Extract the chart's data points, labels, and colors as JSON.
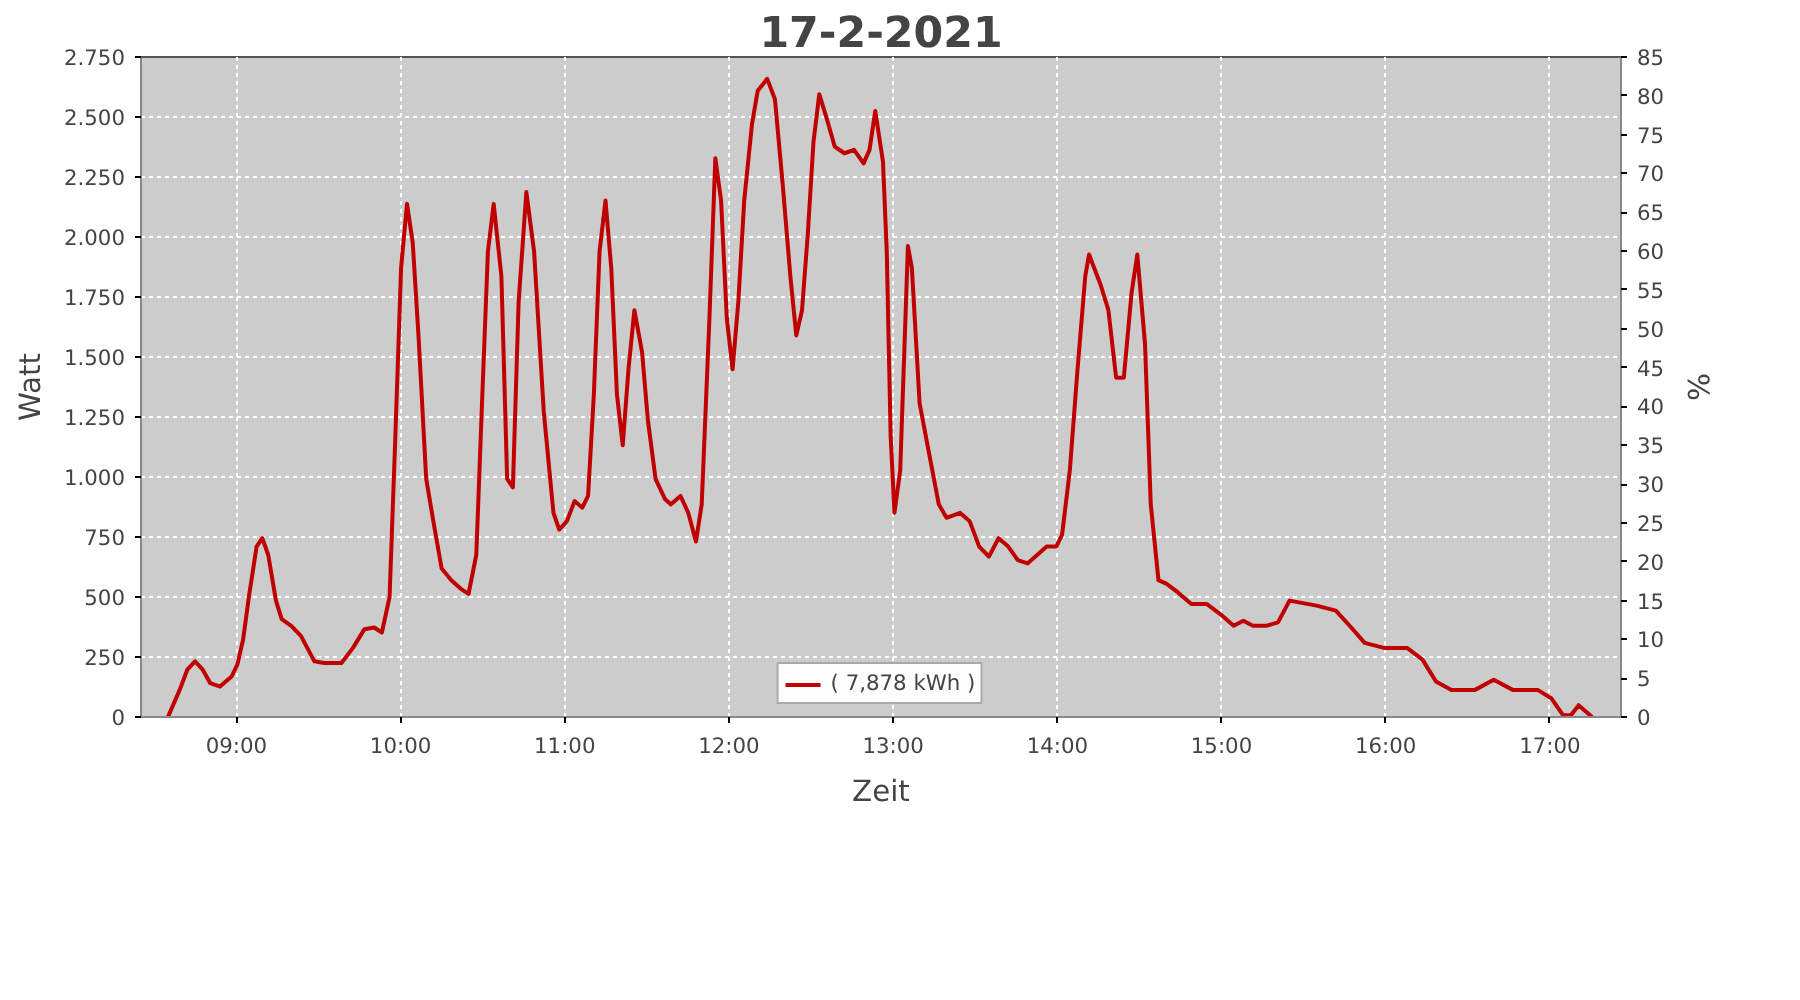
{
  "chart_data": {
    "type": "line",
    "title": "17-2-2021",
    "xlabel": "Zeit",
    "ylabel": "Watt",
    "y2label": "%",
    "xlim": [
      8.419,
      17.433
    ],
    "xticks": [
      {
        "value": 9,
        "label": "09:00"
      },
      {
        "value": 10,
        "label": "10:00"
      },
      {
        "value": 11,
        "label": "11:00"
      },
      {
        "value": 12,
        "label": "12:00"
      },
      {
        "value": 13,
        "label": "13:00"
      },
      {
        "value": 14,
        "label": "14:00"
      },
      {
        "value": 15,
        "label": "15:00"
      },
      {
        "value": 16,
        "label": "16:00"
      },
      {
        "value": 17,
        "label": "17:00"
      }
    ],
    "ylim": [
      0,
      2750
    ],
    "yticks": [
      0,
      250,
      500,
      750,
      {
        "value": 1000,
        "label": "1.000"
      },
      {
        "value": 1250,
        "label": "1.250"
      },
      {
        "value": 1500,
        "label": "1.500"
      },
      {
        "value": 1750,
        "label": "1.750"
      },
      {
        "value": 2000,
        "label": "2.000"
      },
      {
        "value": 2250,
        "label": "2.250"
      },
      {
        "value": 2500,
        "label": "2.500"
      },
      {
        "value": 2750,
        "label": "2.750"
      }
    ],
    "y2lim": [
      0,
      85
    ],
    "y2ticks": [
      0,
      5,
      10,
      15,
      20,
      25,
      30,
      35,
      40,
      45,
      50,
      55,
      60,
      65,
      70,
      75,
      80,
      85
    ],
    "grid": true,
    "legend": "bottom",
    "line_style": "solid",
    "marker": "none",
    "x": [
      8.583,
      8.654,
      8.701,
      8.748,
      8.795,
      8.841,
      8.9,
      8.971,
      9.006,
      9.041,
      9.076,
      9.123,
      9.158,
      9.194,
      9.241,
      9.276,
      9.334,
      9.393,
      9.475,
      9.534,
      9.64,
      9.71,
      9.78,
      9.839,
      9.886,
      9.933,
      9.968,
      10.003,
      10.039,
      10.074,
      10.109,
      10.156,
      10.203,
      10.25,
      10.309,
      10.367,
      10.414,
      10.461,
      10.496,
      10.532,
      10.567,
      10.614,
      10.649,
      10.684,
      10.719,
      10.766,
      10.813,
      10.872,
      10.931,
      10.966,
      11.013,
      11.06,
      11.107,
      11.142,
      11.177,
      11.212,
      11.248,
      11.283,
      11.318,
      11.353,
      11.388,
      11.424,
      11.471,
      11.506,
      11.553,
      11.611,
      11.647,
      11.705,
      11.752,
      11.799,
      11.834,
      11.881,
      11.917,
      11.952,
      11.987,
      12.022,
      12.057,
      12.093,
      12.14,
      12.175,
      12.233,
      12.28,
      12.327,
      12.374,
      12.41,
      12.445,
      12.48,
      12.515,
      12.55,
      12.597,
      12.644,
      12.703,
      12.762,
      12.82,
      12.856,
      12.891,
      12.938,
      12.961,
      12.985,
      13.008,
      13.043,
      13.09,
      13.114,
      13.161,
      13.219,
      13.278,
      13.325,
      13.407,
      13.466,
      13.524,
      13.583,
      13.642,
      13.701,
      13.759,
      13.818,
      13.877,
      13.935,
      13.994,
      14.029,
      14.076,
      14.123,
      14.17,
      14.193,
      14.264,
      14.311,
      14.358,
      14.405,
      14.452,
      14.487,
      14.534,
      14.569,
      14.616,
      14.663,
      14.733,
      14.816,
      14.909,
      14.992,
      15.074,
      15.133,
      15.191,
      15.273,
      15.344,
      15.414,
      15.579,
      15.696,
      15.79,
      15.872,
      15.989,
      16.13,
      16.224,
      16.306,
      16.4,
      16.541,
      16.658,
      16.776,
      16.928,
      17.01,
      17.081,
      17.128,
      17.175,
      17.257
    ],
    "series": [
      {
        "name": "( 7,878 kWh )",
        "color": "#c00000",
        "values": [
          0,
          112,
          197,
          232,
          197,
          141,
          127,
          169,
          218,
          323,
          500,
          710,
          745,
          675,
          485,
          408,
          380,
          338,
          232,
          225,
          225,
          288,
          366,
          373,
          352,
          500,
          1167,
          1870,
          2138,
          1976,
          1590,
          992,
          802,
          619,
          570,
          534,
          513,
          675,
          1308,
          1941,
          2138,
          1836,
          992,
          957,
          1730,
          2187,
          1941,
          1273,
          851,
          781,
          816,
          900,
          872,
          921,
          1343,
          1941,
          2152,
          1871,
          1343,
          1132,
          1449,
          1695,
          1519,
          1238,
          992,
          907,
          886,
          921,
          851,
          731,
          886,
          1660,
          2328,
          2152,
          1660,
          1449,
          1730,
          2152,
          2469,
          2609,
          2659,
          2574,
          2222,
          1836,
          1590,
          1695,
          2011,
          2398,
          2595,
          2490,
          2377,
          2349,
          2363,
          2307,
          2363,
          2525,
          2314,
          1941,
          1167,
          851,
          1027,
          1962,
          1871,
          1308,
          1097,
          886,
          830,
          851,
          816,
          710,
          668,
          745,
          710,
          654,
          640,
          675,
          710,
          710,
          760,
          1027,
          1449,
          1836,
          1927,
          1800,
          1695,
          1414,
          1414,
          1766,
          1927,
          1554,
          886,
          570,
          556,
          520,
          471,
          471,
          429,
          380,
          401,
          380,
          380,
          394,
          485,
          464,
          443,
          373,
          309,
          288,
          288,
          239,
          148,
          112,
          112,
          155,
          112,
          112,
          77,
          7,
          7,
          49,
          0
        ]
      }
    ]
  }
}
